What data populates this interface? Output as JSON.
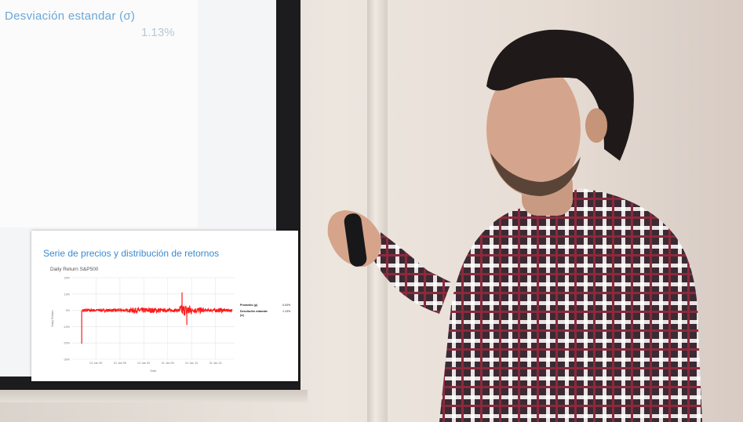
{
  "slide": {
    "desv_label": "Desviación estandar (σ)",
    "desv_value": "1.13%"
  },
  "inset": {
    "title": "Serie de precios y distribución de retornos",
    "stats": [
      {
        "label": "Promedio (μ)",
        "value": "0.04%"
      },
      {
        "label": "Desviación estandar (σ)",
        "value": "1.13%"
      }
    ]
  },
  "chart_data": {
    "type": "line",
    "title": "Daily Return S&P500",
    "xlabel": "Date",
    "ylabel": "Daily Return",
    "y_ticks": [
      "20%",
      "10%",
      "0%",
      "-10%",
      "-20%",
      "-30%"
    ],
    "x_ticks": [
      "01 Jan 90",
      "01 Jan 95",
      "01 Jan 00",
      "01 Jan 05",
      "01 Jan 10",
      "01 Jan 15"
    ],
    "ylim": [
      -30,
      20
    ],
    "grid": true,
    "series": [
      {
        "color": "#ff1a1a",
        "x": [
          "1987",
          "1990",
          "1995",
          "2000",
          "2002",
          "2005",
          "2008",
          "2009",
          "2012",
          "2015",
          "2018"
        ],
        "y": [
          -20.5,
          0.3,
          0.2,
          -0.5,
          0.8,
          0.1,
          11.0,
          -9.0,
          0.6,
          0.3,
          0.5
        ]
      }
    ],
    "line_color": "#ff1a1a"
  }
}
